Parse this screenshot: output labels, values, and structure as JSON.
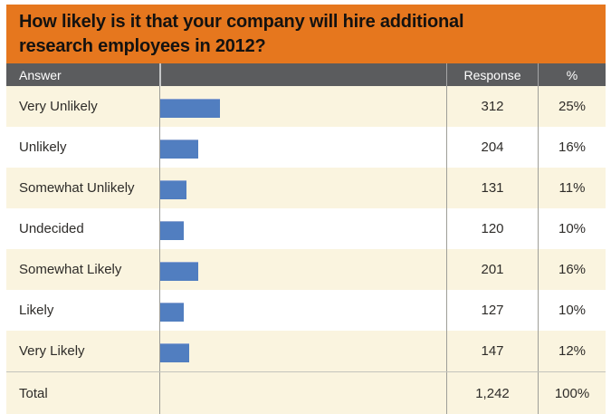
{
  "title_lines": [
    "How likely is it that your company will hire additional",
    "research employees in 2012?"
  ],
  "header": {
    "answer": "Answer",
    "response": "Response",
    "percent": "%"
  },
  "rows": [
    {
      "label": "Very Unlikely",
      "response": "312",
      "percent": "25%",
      "pct": 25
    },
    {
      "label": "Unlikely",
      "response": "204",
      "percent": "16%",
      "pct": 16
    },
    {
      "label": "Somewhat Unlikely",
      "response": "131",
      "percent": "11%",
      "pct": 11
    },
    {
      "label": "Undecided",
      "response": "120",
      "percent": "10%",
      "pct": 10
    },
    {
      "label": "Somewhat Likely",
      "response": "201",
      "percent": "16%",
      "pct": 16
    },
    {
      "label": "Likely",
      "response": "127",
      "percent": "10%",
      "pct": 10
    },
    {
      "label": "Very Likely",
      "response": "147",
      "percent": "12%",
      "pct": 12
    }
  ],
  "total": {
    "label": "Total",
    "response": "1,242",
    "percent": "100%"
  },
  "colors": {
    "title_orange": "#E6771E",
    "header_gray": "#5B5C5E",
    "row_cream": "#FAF4DF",
    "row_white": "#FFFFFF",
    "bar_blue": "#517EC0",
    "divider_gray": "#9E9E98"
  },
  "chart_data": {
    "type": "bar",
    "orientation": "horizontal",
    "title": "How likely is it that your company will hire additional research employees in 2012?",
    "categories": [
      "Very Unlikely",
      "Unlikely",
      "Somewhat Unlikely",
      "Undecided",
      "Somewhat Likely",
      "Likely",
      "Very Likely"
    ],
    "series": [
      {
        "name": "Response",
        "values": [
          312,
          204,
          131,
          120,
          201,
          127,
          147
        ]
      },
      {
        "name": "%",
        "values": [
          25,
          16,
          11,
          10,
          16,
          10,
          12
        ]
      }
    ],
    "total": {
      "response": 1242,
      "percent": 100
    },
    "xlabel": "",
    "ylabel": "",
    "legend": false,
    "grid": false
  }
}
